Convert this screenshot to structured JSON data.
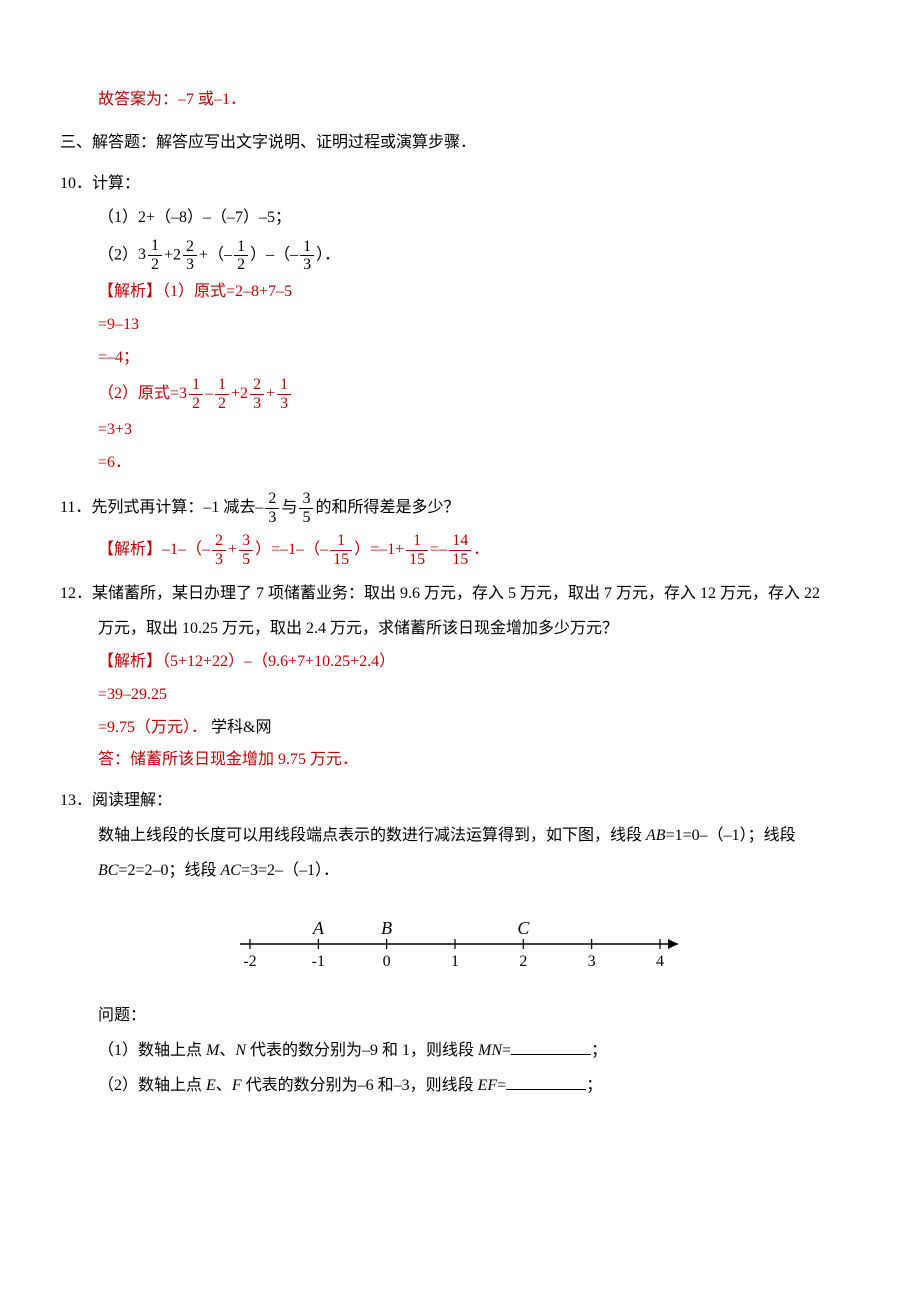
{
  "answer_top": "故答案为：–7 或–1．",
  "section3": "三、解答题：解答应写出文字说明、证明过程或演算步骤．",
  "p10": {
    "num": "10．计算：",
    "sub1_prefix": "（1）2+（–8）–（–7）–5；",
    "sub2_prefix": "（2）",
    "sub2_parts": {
      "three": "3",
      "f1n": "1",
      "f1d": "2",
      "plus1": "+2",
      "f2n": "2",
      "f2d": "3",
      "plus2": "+（–",
      "f3n": "1",
      "f3d": "2",
      "close1": "）–（–",
      "f4n": "1",
      "f4d": "3",
      "close2": "）．"
    },
    "sol_label": "【解析】",
    "sol1a": "（1）原式=2–8+7–5",
    "sol1b": "=9–13",
    "sol1c": "=–4；",
    "sol2_prefix": "（2）原式=3",
    "sol2_parts": {
      "f1n": "1",
      "f1d": "2",
      "m1": "–",
      "f2n": "1",
      "f2d": "2",
      "m2": "+2",
      "f3n": "2",
      "f3d": "3",
      "m3": "+",
      "f4n": "1",
      "f4d": "3"
    },
    "sol2b": "=3+3",
    "sol2c": "=6．"
  },
  "p11": {
    "num_prefix": "11．先列式再计算：–1 减去–",
    "f1n": "2",
    "f1d": "3",
    "mid": "与",
    "f2n": "3",
    "f2d": "5",
    "suffix": "的和所得差是多少？",
    "sol_label": "【解析】",
    "expr": {
      "a": "–1–（–",
      "f1n": "2",
      "f1d": "3",
      "b": "+",
      "f2n": "3",
      "f2d": "5",
      "c": "）=–1–（–",
      "f3n": "1",
      "f3d": "15",
      "d": "）=–1+",
      "f4n": "1",
      "f4d": "15",
      "e": "=–",
      "f5n": "14",
      "f5d": "15",
      "f": "．"
    }
  },
  "p12": {
    "num": "12．某储蓄所，某日办理了 7 项储蓄业务：取出 9.6 万元，存入 5 万元，取出 7 万元，存入 12 万元，存入 22",
    "cont": "万元，取出 10.25 万元，取出 2.4 万元，求储蓄所该日现金增加多少万元？",
    "sol_label": "【解析】",
    "sol_a": "（5+12+22）–（9.6+7+10.25+2.4）",
    "sol_b": "=39–29.25",
    "sol_c": "=9.75（万元）．",
    "credit": " 学科&网",
    "ans": "答：储蓄所该日现金增加 9.75 万元．"
  },
  "p13": {
    "num": "13．阅读理解：",
    "intro_a": "数轴上线段的长度可以用线段端点表示的数进行减法运算得到，如下图，线段 ",
    "ab": "AB",
    "intro_b": "=1=0–（–1）；线段",
    "bc": "BC",
    "intro_c": "=2=2–0；线段 ",
    "ac": "AC",
    "intro_d": "=3=2–（–1）．",
    "numberline": {
      "ticks": [
        -2,
        -1,
        0,
        1,
        2,
        3,
        4
      ],
      "points": [
        {
          "label": "A",
          "x": -1
        },
        {
          "label": "B",
          "x": 0
        },
        {
          "label": "C",
          "x": 2
        }
      ],
      "line_color": "#000000",
      "font_family_label": "Times New Roman",
      "label_fontsize": 18,
      "tick_fontsize": 16
    },
    "q_label": "问题：",
    "q1_a": "（1）数轴上点 ",
    "mn1": "M",
    "q1_b": "、",
    "mn2": "N",
    "q1_c": " 代表的数分别为–9 和 1，则线段 ",
    "mn": "MN",
    "q1_d": "=",
    "q1_end": "；",
    "q2_a": "（2）数轴上点 ",
    "ef1": "E",
    "q2_b": "、",
    "ef2": "F",
    "q2_c": " 代表的数分别为–6 和–3，则线段 ",
    "ef": "EF",
    "q2_d": "=",
    "q2_end": "；"
  }
}
